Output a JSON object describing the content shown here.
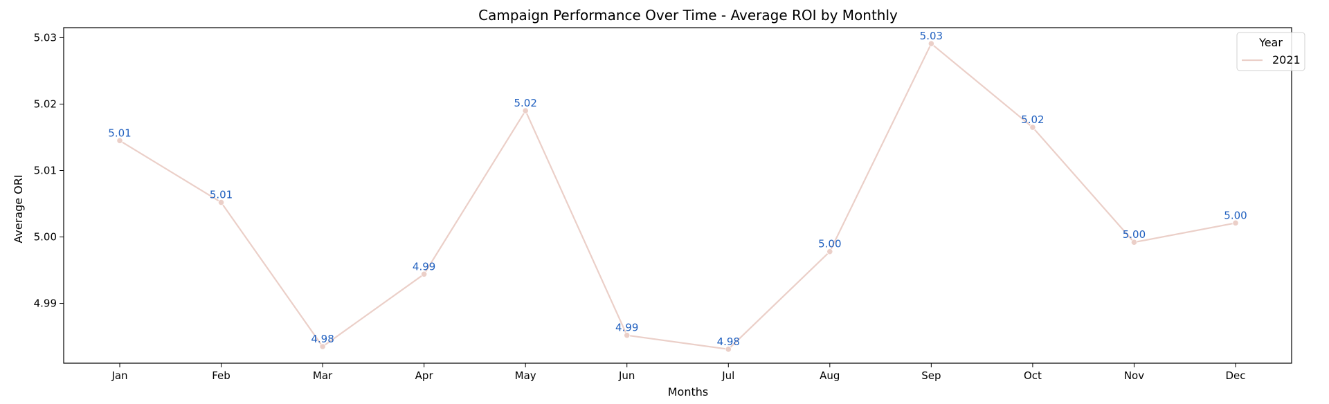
{
  "chart_data": {
    "type": "line",
    "title": "Campaign Performance Over Time - Average ROI by Monthly",
    "xlabel": "Months",
    "ylabel": "Average ORI",
    "categories": [
      "Jan",
      "Feb",
      "Mar",
      "Apr",
      "May",
      "Jun",
      "Jul",
      "Aug",
      "Sep",
      "Oct",
      "Nov",
      "Dec"
    ],
    "series": [
      {
        "name": "2021",
        "values": [
          5.0145,
          5.0052,
          4.9835,
          4.9944,
          5.019,
          4.9852,
          4.9831,
          4.9978,
          5.0291,
          5.0165,
          4.9992,
          5.0021
        ],
        "data_labels": [
          "5.01",
          "5.01",
          "4.98",
          "4.99",
          "5.02",
          "4.99",
          "4.98",
          "5.00",
          "5.03",
          "5.02",
          "5.00",
          "5.00"
        ]
      }
    ],
    "ylim": [
      4.981,
      5.0315
    ],
    "yticks": [
      4.99,
      5.0,
      5.01,
      5.02,
      5.03
    ],
    "ytick_labels": [
      "4.99",
      "5.00",
      "5.01",
      "5.02",
      "5.03"
    ],
    "grid": false,
    "legend": {
      "title": "Year",
      "placement": "top-right"
    },
    "colors": {
      "line": "#ebcfc8",
      "marker": "#ebcfc8",
      "data_label": "#1f5fbf",
      "axes": "#000000"
    }
  }
}
